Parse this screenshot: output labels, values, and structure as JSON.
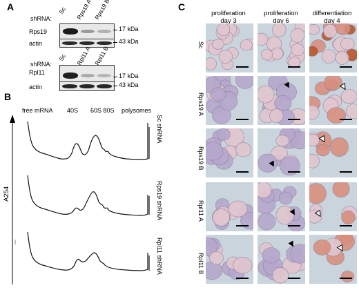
{
  "panelA": {
    "label": "A",
    "blot1": {
      "shrna_label": "shRNA:",
      "lanes": [
        "Sc",
        "Rps19 A",
        "Rps19 B"
      ],
      "rows": [
        {
          "protein": "Rps19",
          "marker": "17 kDa"
        },
        {
          "protein": "actin",
          "marker": "43 kDa"
        }
      ]
    },
    "blot2": {
      "shrna_label": "shRNA:",
      "lanes": [
        "Sc",
        "Rpl11 A",
        "Rpl11 B"
      ],
      "rows": [
        {
          "protein": "Rpl11",
          "marker": "17 kDa"
        },
        {
          "protein": "actin",
          "marker": "43 kDa"
        }
      ]
    }
  },
  "panelB": {
    "label": "B",
    "header_labels": [
      "free mRNA",
      "40S",
      "60S 80S",
      "polysomes"
    ],
    "yaxis_label": "A254",
    "traces": [
      "Sc shRNA",
      "Rps19 shRNA",
      "Rpl11 shRNA"
    ]
  },
  "panelC": {
    "label": "C",
    "columns": [
      {
        "line1": "proliferation",
        "line2": "day 3"
      },
      {
        "line1": "proliferation",
        "line2": "day 6"
      },
      {
        "line1": "differentiation",
        "line2": "day 4"
      }
    ],
    "rows": [
      "Sc",
      "Rps19 A",
      "Rps19 B",
      "Rpl11 A",
      "Rpl11 B"
    ]
  },
  "colors": {
    "background_micro": "#c9d4dd",
    "cell_light": "#e2c6cf",
    "cell_purple": "#b6a8cd",
    "cell_red": "#d8907f",
    "hemoglobin": "#b9552e"
  }
}
